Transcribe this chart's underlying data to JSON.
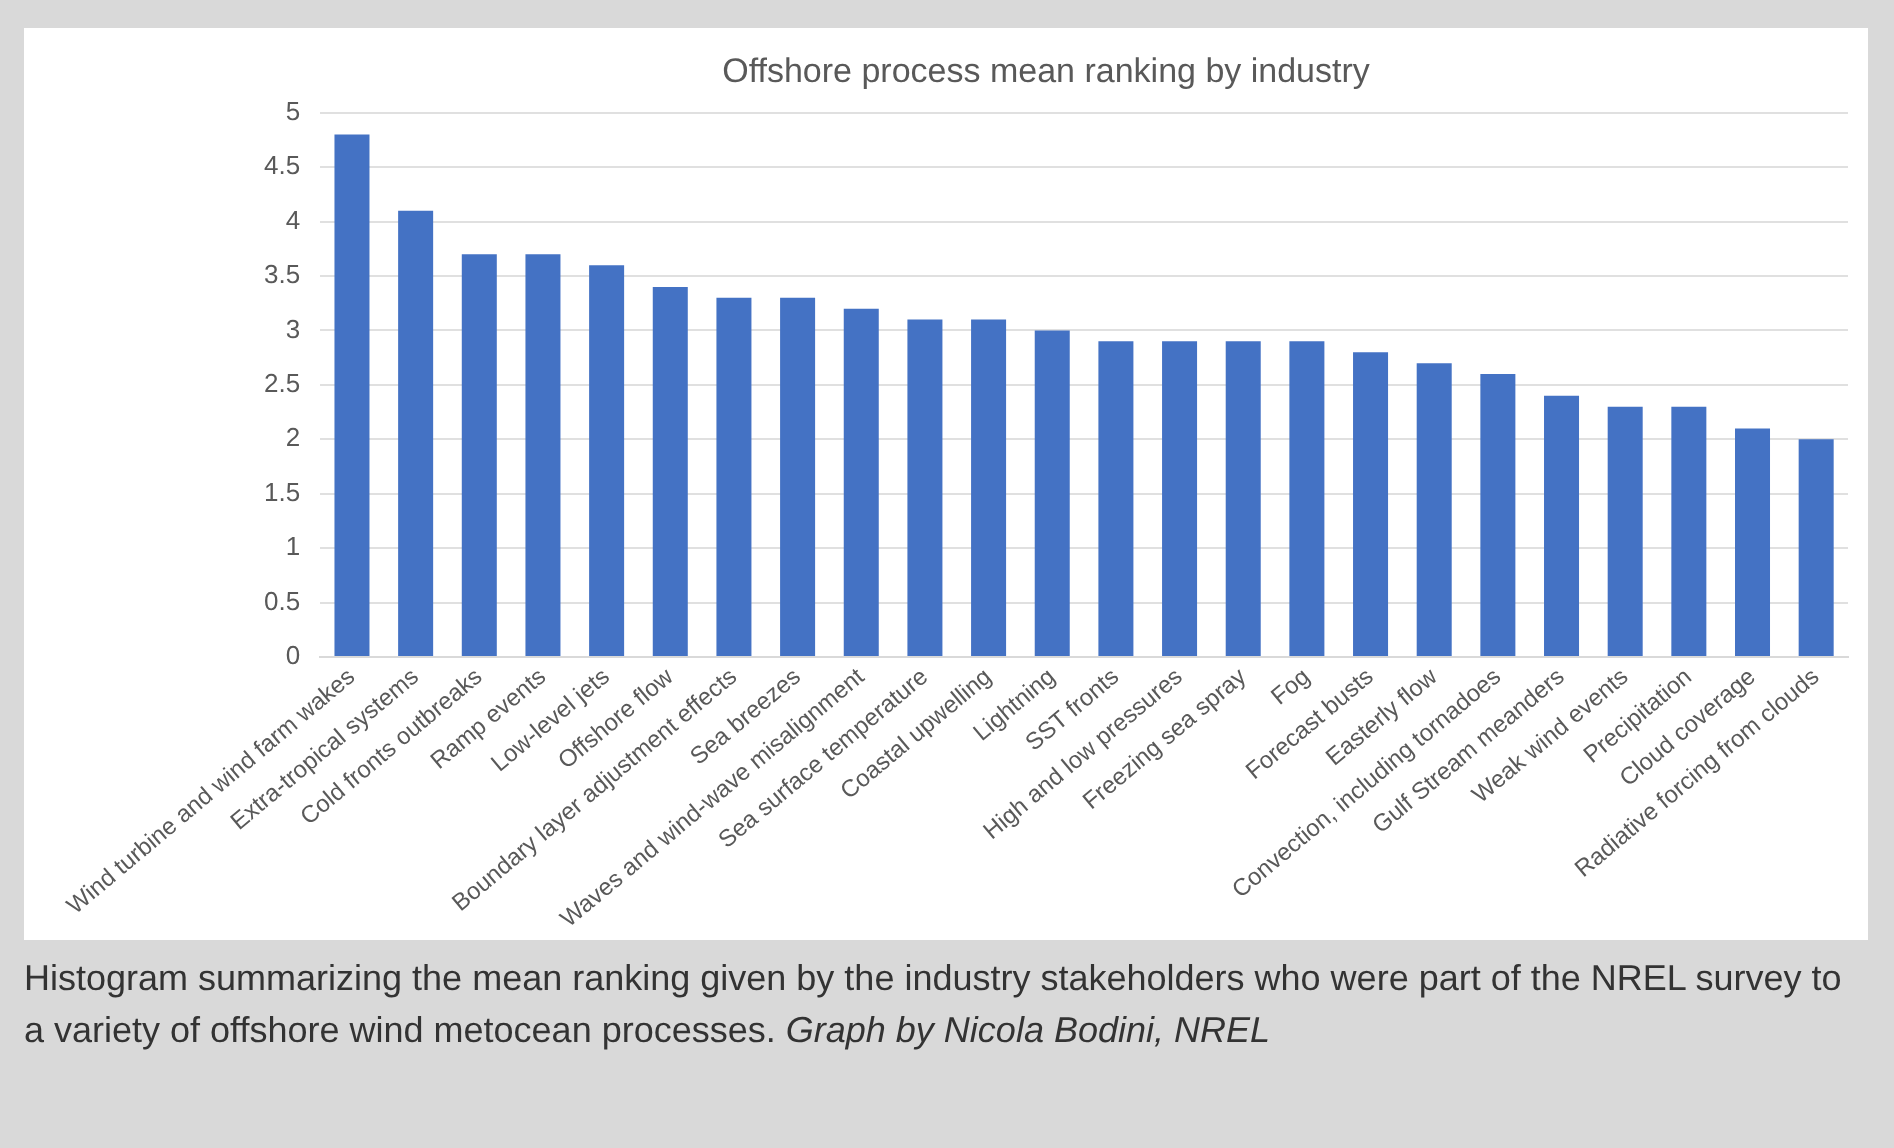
{
  "chart_data": {
    "type": "bar",
    "title": "Offshore process mean ranking by industry",
    "categories": [
      "Wind turbine and wind farm wakes",
      "Extra-tropical systems",
      "Cold fronts outbreaks",
      "Ramp events",
      "Low-level jets",
      "Offshore flow",
      "Boundary layer adjustment effects",
      "Sea breezes",
      "Waves and wind-wave misalignment",
      "Sea surface temperature",
      "Coastal upwelling",
      "Lightning",
      "SST fronts",
      "High and low pressures",
      "Freezing sea spray",
      "Fog",
      "Forecast busts",
      "Easterly flow",
      "Convection, including tornadoes",
      "Gulf Stream meanders",
      "Weak wind events",
      "Precipitation",
      "Cloud coverage",
      "Radiative forcing from clouds"
    ],
    "values": [
      4.8,
      4.1,
      3.7,
      3.7,
      3.6,
      3.4,
      3.3,
      3.3,
      3.2,
      3.1,
      3.1,
      3.0,
      2.9,
      2.9,
      2.9,
      2.9,
      2.8,
      2.7,
      2.6,
      2.4,
      2.3,
      2.3,
      2.1,
      2.0
    ],
    "color": "#4472c4",
    "ylim": [
      0,
      5
    ],
    "yticks": [
      0,
      0.5,
      1,
      1.5,
      2,
      2.5,
      3,
      3.5,
      4,
      4.5,
      5
    ],
    "grid": "y",
    "annotations": [
      "Histogram summarizing the mean ranking given by the industry stakeholders who were part of the NREL survey to a variety of offshore wind metocean processes.",
      "Graph by Nicola Bodini, NREL"
    ]
  }
}
